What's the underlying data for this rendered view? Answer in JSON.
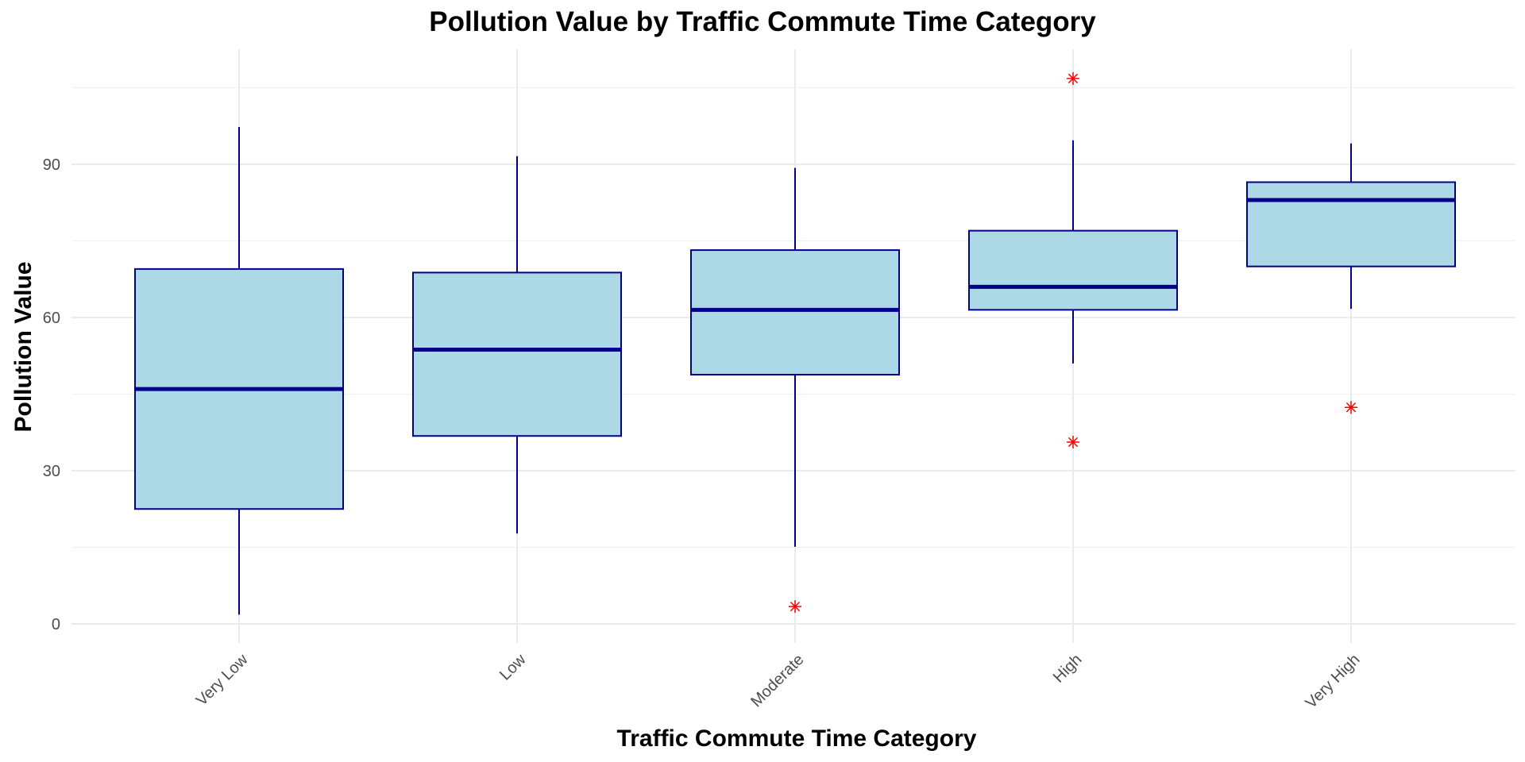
{
  "chart_data": {
    "type": "box",
    "title": "Pollution Value by Traffic Commute Time Category",
    "xlabel": "Traffic Commute Time Category",
    "ylabel": "Pollution Value",
    "ylim": [
      -5,
      112
    ],
    "yticks": [
      0,
      30,
      60,
      90
    ],
    "grid": true,
    "categories": [
      "Very Low",
      "Low",
      "Moderate",
      "High",
      "Very High"
    ],
    "boxes": [
      {
        "category": "Very Low",
        "whisker_low": 1.8,
        "q1": 22.5,
        "median": 46.0,
        "q3": 69.5,
        "whisker_high": 97.3,
        "outliers": []
      },
      {
        "category": "Low",
        "whisker_low": 17.7,
        "q1": 36.8,
        "median": 53.7,
        "q3": 68.8,
        "whisker_high": 91.6,
        "outliers": []
      },
      {
        "category": "Moderate",
        "whisker_low": 15.1,
        "q1": 48.8,
        "median": 61.5,
        "q3": 73.2,
        "whisker_high": 89.3,
        "outliers": [
          3.4
        ]
      },
      {
        "category": "High",
        "whisker_low": 51.0,
        "q1": 61.5,
        "median": 66.0,
        "q3": 77.0,
        "whisker_high": 94.7,
        "outliers": [
          35.6,
          106.8
        ]
      },
      {
        "category": "Very High",
        "whisker_low": 61.7,
        "q1": 70.0,
        "median": 83.0,
        "q3": 86.5,
        "whisker_high": 94.1,
        "outliers": [
          42.4
        ]
      }
    ],
    "colors": {
      "box_fill": "#add8e6",
      "box_stroke": "#00008b",
      "outlier": "#ff0000",
      "grid": "#ebebeb"
    }
  }
}
